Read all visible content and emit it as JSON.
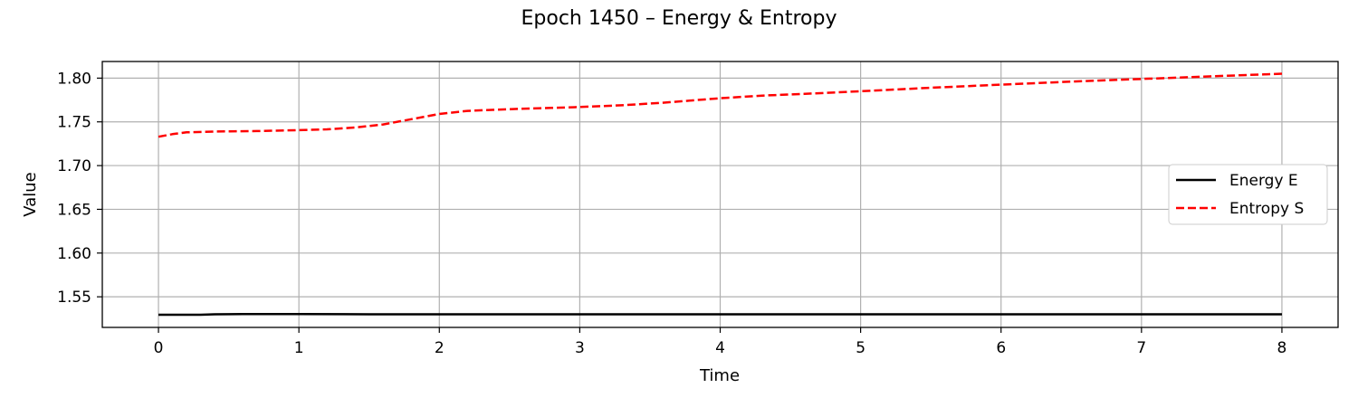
{
  "chart_data": {
    "type": "line",
    "title": "Epoch 1450 – Energy & Entropy",
    "xlabel": "Time",
    "ylabel": "Value",
    "xlim": [
      -0.4,
      8.4
    ],
    "ylim": [
      1.515,
      1.819
    ],
    "xticks": [
      0,
      1,
      2,
      3,
      4,
      5,
      6,
      7,
      8
    ],
    "xtick_labels": [
      "0",
      "1",
      "2",
      "3",
      "4",
      "5",
      "6",
      "7",
      "8"
    ],
    "yticks": [
      1.55,
      1.6,
      1.65,
      1.7,
      1.75,
      1.8
    ],
    "ytick_labels": [
      "1.55",
      "1.60",
      "1.65",
      "1.70",
      "1.75",
      "1.80"
    ],
    "grid": true,
    "legend_position": "center-right",
    "series": [
      {
        "name": "Energy E",
        "color": "#000000",
        "dash": "solid",
        "x": [
          0,
          0.3,
          0.4,
          0.6,
          1.0,
          1.5,
          2,
          3,
          4,
          5,
          6,
          7,
          8
        ],
        "y": [
          1.5295,
          1.5295,
          1.53,
          1.5302,
          1.5302,
          1.53,
          1.53,
          1.53,
          1.53,
          1.53,
          1.53,
          1.53,
          1.53
        ]
      },
      {
        "name": "Entropy S",
        "color": "#ff0000",
        "dash": "dashed",
        "x": [
          0,
          0.1,
          0.2,
          0.4,
          0.7,
          1.0,
          1.2,
          1.4,
          1.6,
          1.8,
          2.0,
          2.2,
          2.5,
          2.8,
          3.0,
          3.3,
          3.6,
          4.0,
          4.3,
          4.6,
          5.0,
          5.5,
          6.0,
          6.5,
          7.0,
          7.5,
          8.0
        ],
        "y": [
          1.733,
          1.736,
          1.738,
          1.739,
          1.7395,
          1.7405,
          1.7415,
          1.7435,
          1.747,
          1.753,
          1.759,
          1.7625,
          1.7645,
          1.766,
          1.767,
          1.769,
          1.772,
          1.777,
          1.78,
          1.782,
          1.785,
          1.789,
          1.7925,
          1.796,
          1.799,
          1.802,
          1.805
        ]
      }
    ]
  }
}
